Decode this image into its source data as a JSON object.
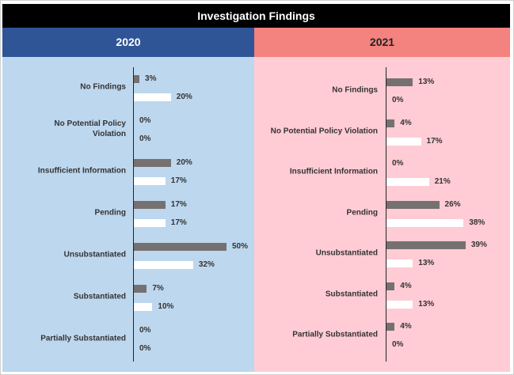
{
  "title": "Investigation Findings",
  "chart_data": [
    {
      "type": "bar",
      "title": "2020",
      "categories": [
        "No Findings",
        "No Potential Policy Violation",
        "Insufficient Information",
        "Pending",
        "Unsubstantiated",
        "Substantiated",
        "Partially Substantiated"
      ],
      "series": [
        {
          "color": "#767171",
          "values": [
            3,
            0,
            20,
            17,
            50,
            7,
            0
          ],
          "value_labels": [
            "3%",
            "0%",
            "20%",
            "17%",
            "50%",
            "7%",
            "0%"
          ]
        },
        {
          "color": "#ffffff",
          "values": [
            20,
            0,
            17,
            17,
            32,
            10,
            0
          ],
          "value_labels": [
            "20%",
            "0%",
            "17%",
            "17%",
            "32%",
            "10%",
            "0%"
          ]
        }
      ]
    },
    {
      "type": "bar",
      "title": "2021",
      "categories": [
        "No Findings",
        "No Potential Policy Violation",
        "Insufficient Information",
        "Pending",
        "Unsubstantiated",
        "Substantiated",
        "Partially Substantiated"
      ],
      "series": [
        {
          "color": "#767171",
          "values": [
            13,
            4,
            0,
            26,
            39,
            4,
            4
          ],
          "value_labels": [
            "13%",
            "4%",
            "0%",
            "26%",
            "39%",
            "4%",
            "4%"
          ]
        },
        {
          "color": "#ffffff",
          "values": [
            0,
            17,
            21,
            38,
            13,
            13,
            0
          ],
          "value_labels": [
            "0%",
            "17%",
            "21%",
            "38%",
            "13%",
            "13%",
            "0%"
          ]
        }
      ]
    }
  ]
}
